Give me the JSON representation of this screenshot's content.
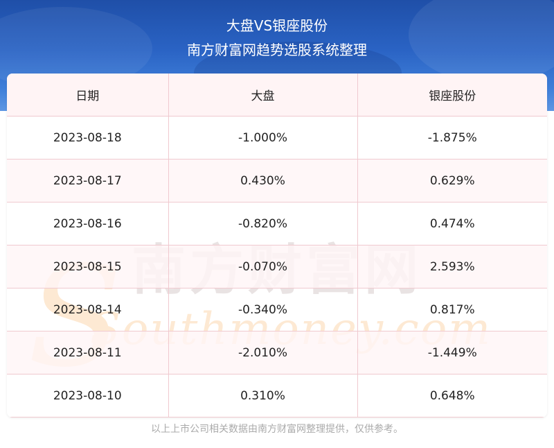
{
  "header": {
    "title": "大盘VS银座股份",
    "subtitle": "南方财富网趋势选股系统整理"
  },
  "table": {
    "columns": [
      "日期",
      "大盘",
      "银座股份"
    ],
    "rows": [
      [
        "2023-08-18",
        "-1.000%",
        "-1.875%"
      ],
      [
        "2023-08-17",
        "0.430%",
        "0.629%"
      ],
      [
        "2023-08-16",
        "-0.820%",
        "0.474%"
      ],
      [
        "2023-08-15",
        "-0.070%",
        "2.593%"
      ],
      [
        "2023-08-14",
        "-0.340%",
        "0.817%"
      ],
      [
        "2023-08-11",
        "-2.010%",
        "-1.449%"
      ],
      [
        "2023-08-10",
        "0.310%",
        "0.648%"
      ]
    ]
  },
  "watermark": {
    "text_cn": "南方财富网",
    "text_en": "Southmoney.com"
  },
  "footer": {
    "note": "以上上市公司相关数据由南方财富网整理提供，仅供参考。"
  },
  "colors": {
    "banner": "#2a63c4",
    "grid_line": "#f0c9cf",
    "header_row_bg": "#fff3f4",
    "watermark_cn": "#e9e3e3",
    "watermark_en": "#fde9d3"
  }
}
